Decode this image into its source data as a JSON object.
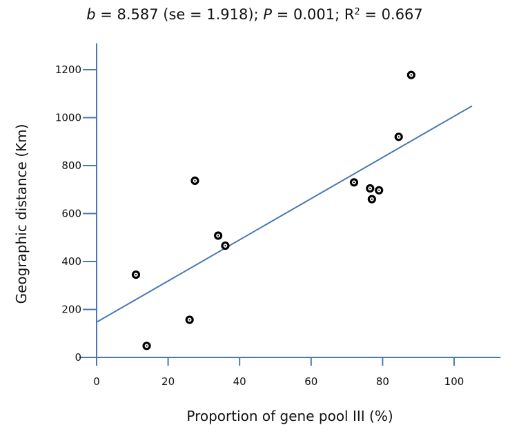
{
  "chart_data": {
    "type": "scatter",
    "title": {
      "b_symbol": "b",
      "b_text": " = 8.587 (se = 1.918); ",
      "p_symbol": "P",
      "p_text": " = 0.001; R",
      "r2_sup": "2",
      "r2_text": " = 0.667"
    },
    "xlabel": "Proportion of gene pool III (%)",
    "ylabel": "Geographic distance (Km)",
    "xlim": [
      0,
      113
    ],
    "ylim": [
      0,
      1310
    ],
    "x_ticks": [
      0,
      20,
      40,
      60,
      80,
      100
    ],
    "y_ticks": [
      0,
      200,
      400,
      600,
      800,
      1000,
      1200
    ],
    "points": [
      {
        "x": 11,
        "y": 345
      },
      {
        "x": 14,
        "y": 48
      },
      {
        "x": 26,
        "y": 157
      },
      {
        "x": 27.5,
        "y": 737
      },
      {
        "x": 34,
        "y": 508
      },
      {
        "x": 36,
        "y": 466
      },
      {
        "x": 72,
        "y": 730
      },
      {
        "x": 76.5,
        "y": 705
      },
      {
        "x": 77,
        "y": 660
      },
      {
        "x": 79,
        "y": 697
      },
      {
        "x": 84.5,
        "y": 920
      },
      {
        "x": 88,
        "y": 1178
      }
    ],
    "fit_line": {
      "slope": 8.587,
      "intercept": 147,
      "x_start": 0,
      "x_end": 105
    },
    "line_color": "#4a78b4",
    "axis_color": "#4a78b4",
    "point_color": "#000000",
    "grid": false,
    "legend": "none"
  }
}
